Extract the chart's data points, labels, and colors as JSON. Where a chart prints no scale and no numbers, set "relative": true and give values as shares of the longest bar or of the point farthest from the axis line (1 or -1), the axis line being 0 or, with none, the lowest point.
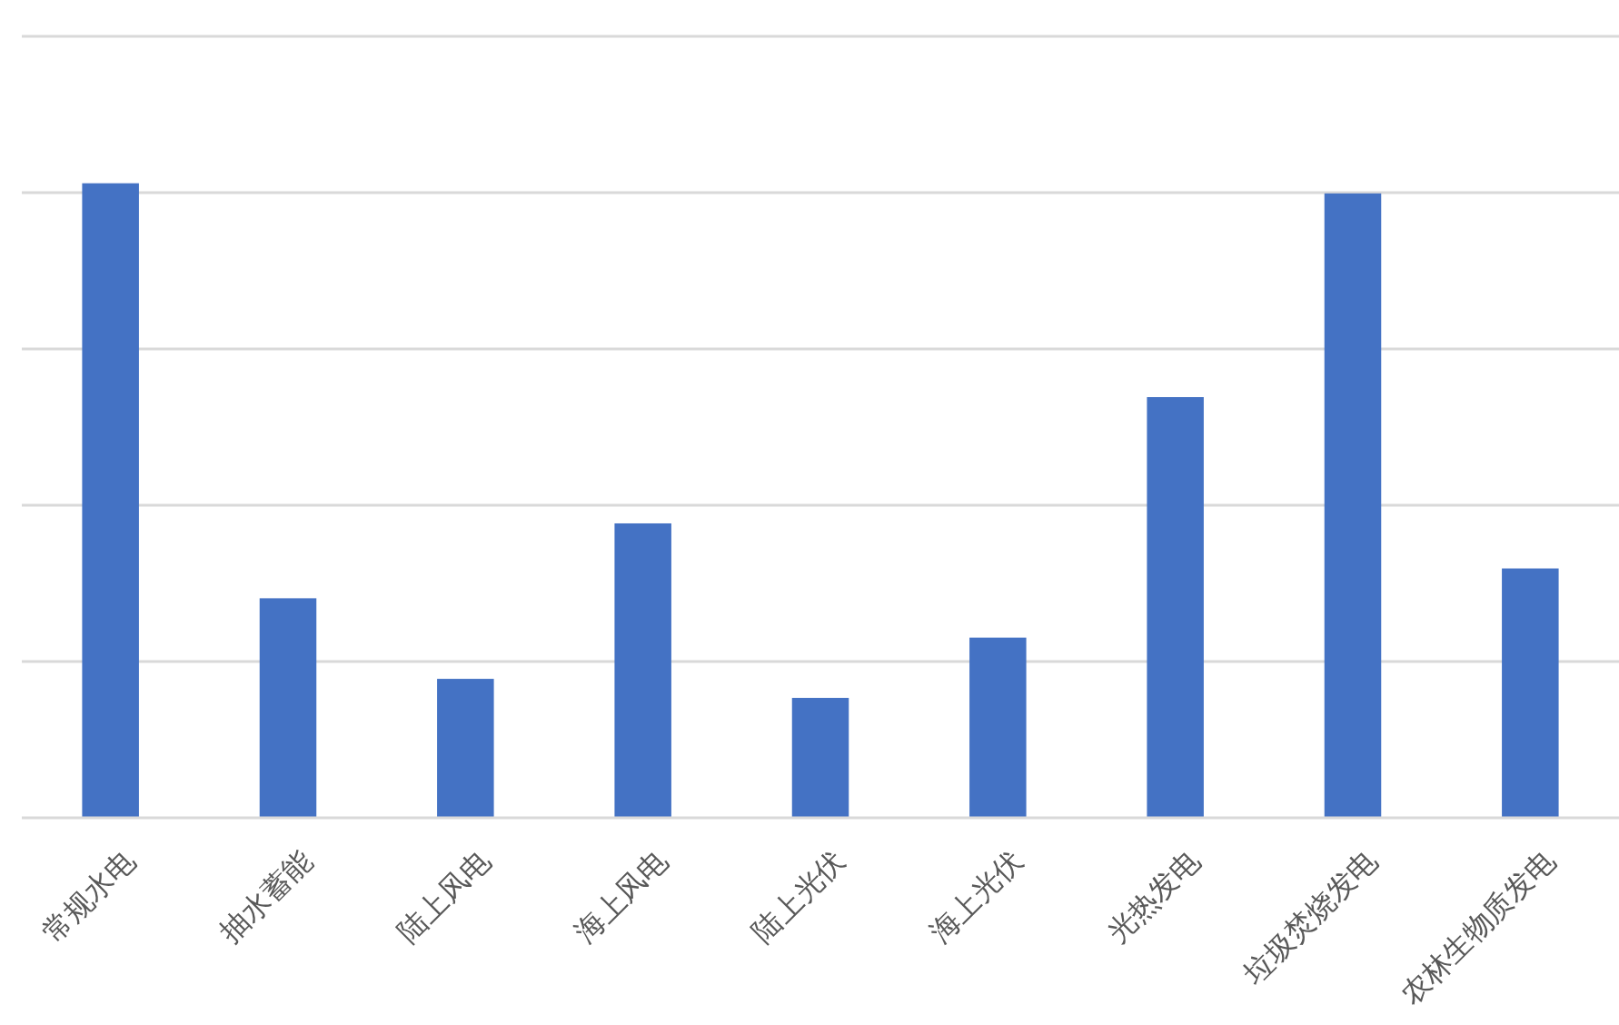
{
  "chart_data": {
    "type": "bar",
    "relative": true,
    "categories": [
      "常规水电",
      "抽水蓄能",
      "陆上风电",
      "海上风电",
      "陆上光伏",
      "海上光伏",
      "光热发电",
      "垃圾焚烧发电",
      "农林生物质发电"
    ],
    "values": [
      1,
      0.346,
      0.219,
      0.464,
      0.189,
      0.284,
      0.663,
      0.984,
      0.393
    ],
    "color": "#4472c4",
    "grid": "y"
  }
}
